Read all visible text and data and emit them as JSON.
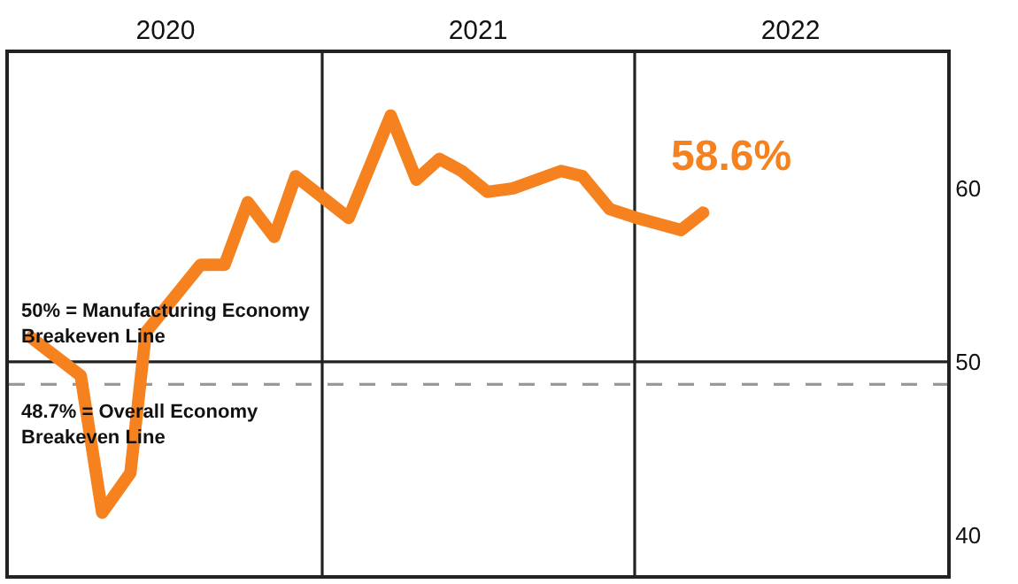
{
  "chart_data": {
    "type": "line",
    "x": [
      "2020-01-27",
      "2020-03-25",
      "2020-04-19",
      "2020-05-22",
      "2020-06-09",
      "2020-08-12",
      "2020-09-09",
      "2020-10-06",
      "2020-11-06",
      "2020-12-01",
      "2021-02-01",
      "2021-03-22",
      "2021-04-21",
      "2021-05-18",
      "2021-06-13",
      "2021-07-13",
      "2021-08-12",
      "2021-10-07",
      "2021-11-01",
      "2021-12-03",
      "2022-01-03",
      "2022-02-24",
      "2022-03-22"
    ],
    "series": [
      {
        "color": "#f5821f",
        "values": [
          51.4,
          49.2,
          41.3,
          43.6,
          51.7,
          55.6,
          55.6,
          59.2,
          57.2,
          60.7,
          58.3,
          64.2,
          60.5,
          61.7,
          61.0,
          59.8,
          60.0,
          61.0,
          60.7,
          58.8,
          58.3,
          57.6,
          58.6
        ]
      }
    ],
    "xlim": [
      "2020-01-01",
      "2023-01-01"
    ],
    "xticks": [
      {
        "value": "2020-07-02",
        "label": "2020"
      },
      {
        "value": "2021-07-02",
        "label": "2021"
      },
      {
        "value": "2022-07-02",
        "label": "2022"
      }
    ],
    "ylim": [
      37.7,
      67.8
    ],
    "yticks": [
      40,
      50,
      60
    ],
    "ref_lines": [
      {
        "axis": "y",
        "value": 50,
        "label": "50% = Manufacturing Economy Breakeven Line",
        "color": "#222222",
        "line_style": "solid"
      },
      {
        "axis": "y",
        "value": 48.7,
        "label": "48.7% = Overall Economy Breakeven Line",
        "color": "#999999",
        "line_style": "dashed"
      },
      {
        "axis": "x",
        "value": "2021-01-01",
        "color": "#222222",
        "line_style": "solid"
      },
      {
        "axis": "x",
        "value": "2022-01-01",
        "color": "#222222",
        "line_style": "solid"
      }
    ],
    "annotations": [
      {
        "text": "58.6%",
        "x": "2022-03-22",
        "y": 58.6
      }
    ],
    "grid": false,
    "marker": "none",
    "line_style": "solid"
  }
}
